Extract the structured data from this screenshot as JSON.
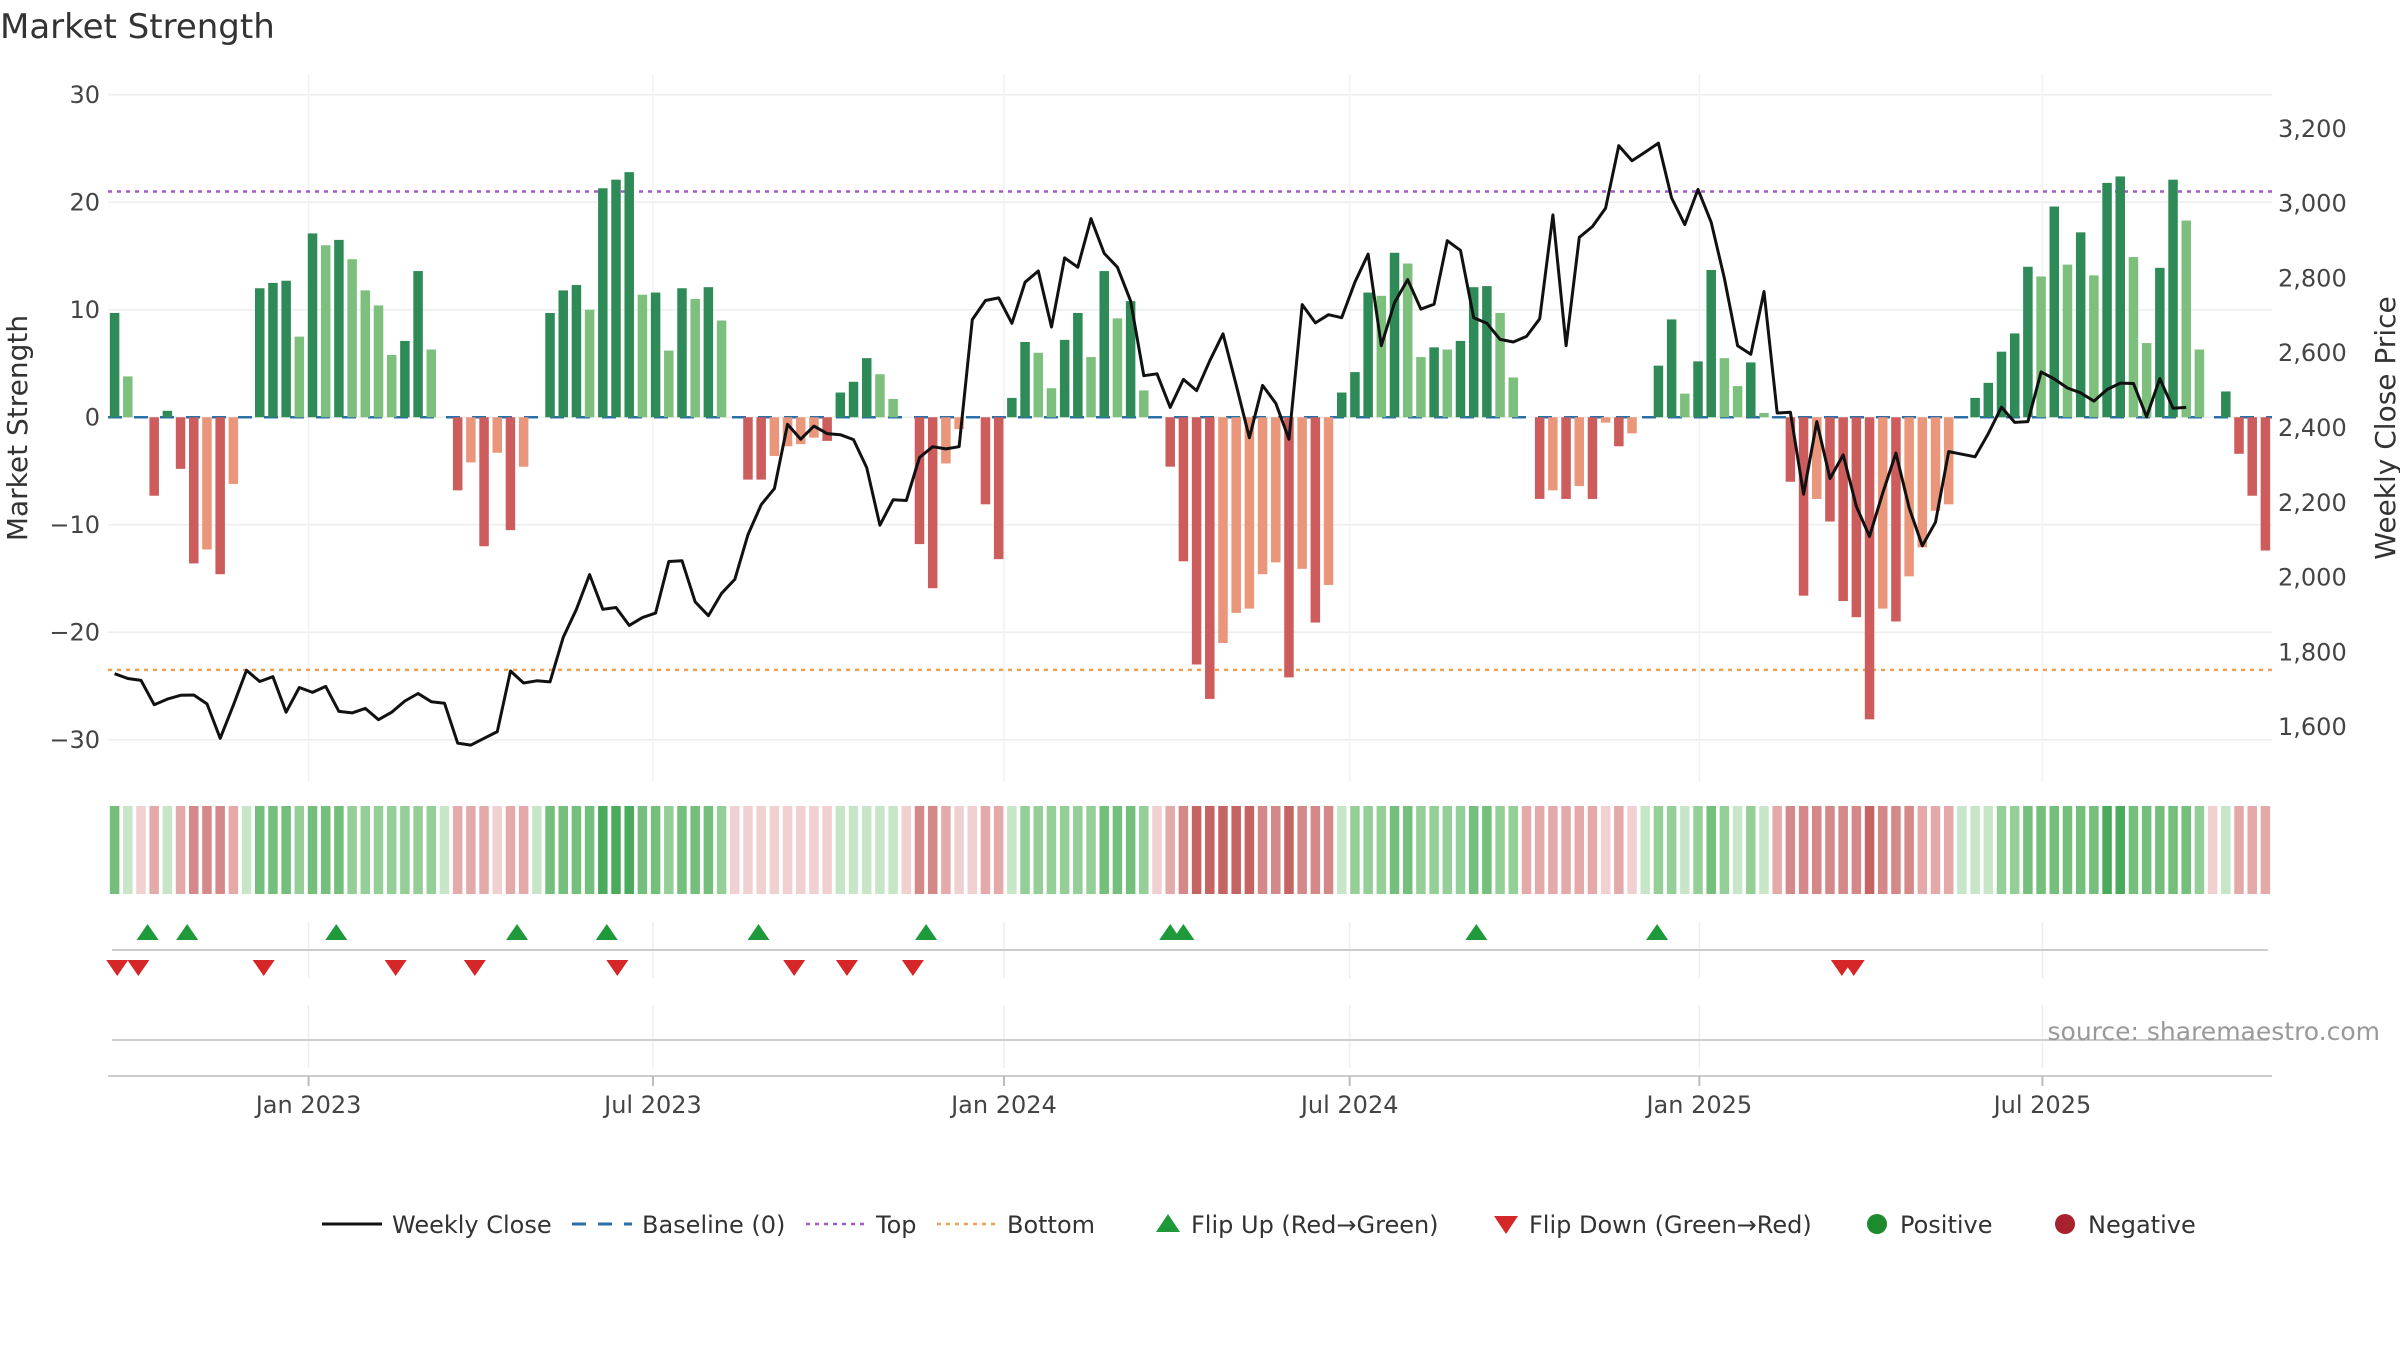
{
  "chart_data": {
    "type": "bar",
    "title": "Market Strength",
    "ylabel": "Market Strength",
    "y2label": "Weekly Close Price",
    "ylim": [
      -33,
      31
    ],
    "y2lim": [
      1480,
      3320
    ],
    "yticks": [
      30,
      20,
      10,
      0,
      -10,
      -20,
      -30
    ],
    "ytick_labels": [
      "30",
      "20",
      "10",
      "0",
      "−10",
      "−20",
      "−30"
    ],
    "y2ticks": [
      3200,
      3000,
      2800,
      2600,
      2400,
      2200,
      2000,
      1800,
      1600
    ],
    "y2tick_labels": [
      "3,200",
      "3,000",
      "2,800",
      "2,600",
      "2,400",
      "2,200",
      "2,000",
      "1,800",
      "1,600"
    ],
    "x_labels": [
      {
        "label": "Jan 2023",
        "week": 15.2
      },
      {
        "label": "Jul 2023",
        "week": 41.3
      },
      {
        "label": "Jan 2024",
        "week": 67.9
      },
      {
        "label": "Jul 2024",
        "week": 94.1
      },
      {
        "label": "Jan 2025",
        "week": 120.6
      },
      {
        "label": "Jul 2025",
        "week": 146.6
      }
    ],
    "top_line": 21,
    "bottom_line": -23.5,
    "strength": [
      9.7,
      3.8,
      0,
      -7.3,
      0.6,
      -4.8,
      -13.6,
      -12.3,
      -14.6,
      -6.2,
      0,
      12,
      12.5,
      12.7,
      7.5,
      17.1,
      16,
      16.5,
      14.7,
      11.8,
      10.4,
      5.8,
      7.1,
      13.6,
      6.3,
      0,
      -6.8,
      -4.2,
      -12,
      -3.3,
      -10.5,
      -4.6,
      0,
      9.7,
      11.8,
      12.3,
      10,
      21.3,
      22.1,
      22.8,
      11.4,
      11.6,
      6.2,
      12,
      11,
      12.1,
      9,
      0,
      -5.8,
      -5.8,
      -3.6,
      -2.7,
      -2.5,
      -1.9,
      -2.2,
      2.3,
      3.3,
      5.5,
      4,
      1.7,
      0,
      -11.8,
      -15.9,
      -4.3,
      -1.1,
      0,
      -8.1,
      -13.2,
      1.8,
      7,
      6,
      2.7,
      7.2,
      9.7,
      5.6,
      13.6,
      9.2,
      10.8,
      2.5,
      0,
      -4.6,
      -13.4,
      -23,
      -26.2,
      -21,
      -18.2,
      -17.8,
      -14.6,
      -13.5,
      -24.2,
      -14.1,
      -19.1,
      -15.6,
      2.3,
      4.2,
      11.6,
      11.3,
      15.3,
      14.3,
      5.6,
      6.5,
      6.3,
      7.1,
      12.1,
      12.2,
      9.7,
      3.7,
      0,
      -7.6,
      -6.8,
      -7.6,
      -6.4,
      -7.6,
      -0.5,
      -2.7,
      -1.5,
      0,
      4.8,
      9.1,
      2.2,
      5.2,
      13.7,
      5.5,
      2.9,
      5.1,
      0.4,
      0,
      -6,
      -16.6,
      -7.6,
      -9.7,
      -17.1,
      -18.6,
      -28.1,
      -17.8,
      -19,
      -14.8,
      -12.1,
      -8.7,
      -8.1,
      0,
      1.8,
      3.2,
      6.1,
      7.8,
      14,
      13.1,
      19.6,
      14.2,
      17.2,
      13.2,
      21.8,
      22.4,
      14.9,
      6.9,
      13.9,
      22.1,
      18.3,
      6.3,
      0,
      2.4,
      -3.4,
      -7.3,
      -12.4
    ],
    "weekly_close": [
      1743,
      1730,
      1725,
      1660,
      1675,
      1685,
      1686,
      1662,
      1570,
      1659,
      1752,
      1722,
      1735,
      1640,
      1706,
      1693,
      1709,
      1642,
      1638,
      1650,
      1620,
      1640,
      1670,
      1690,
      1668,
      1664,
      1557,
      1552,
      1570,
      1588,
      1750,
      1718,
      1724,
      1721,
      1840,
      1915,
      2008,
      1915,
      1920,
      1872,
      1893,
      1905,
      2043,
      2045,
      1935,
      1898,
      1958,
      1995,
      2115,
      2195,
      2238,
      2410,
      2370,
      2405,
      2385,
      2382,
      2369,
      2294,
      2140,
      2208,
      2206,
      2321,
      2350,
      2344,
      2350,
      2690,
      2741,
      2748,
      2680,
      2790,
      2820,
      2670,
      2855,
      2830,
      2960,
      2867,
      2830,
      2740,
      2540,
      2545,
      2455,
      2530,
      2500,
      2580,
      2652,
      2515,
      2374,
      2514,
      2466,
      2370,
      2730,
      2681,
      2703,
      2695,
      2790,
      2865,
      2620,
      2735,
      2797,
      2718,
      2731,
      2901,
      2875,
      2695,
      2680,
      2637,
      2630,
      2645,
      2692,
      2970,
      2620,
      2910,
      2939,
      2988,
      3155,
      3115,
      3138,
      3162,
      3015,
      2944,
      3038,
      2950,
      2800,
      2620,
      2597,
      2765,
      2440,
      2442,
      2223,
      2417,
      2265,
      2328,
      2190,
      2110,
      2226,
      2333,
      2187,
      2085,
      2148,
      2337,
      2330,
      2323,
      2385,
      2456,
      2415,
      2417,
      2550,
      2531,
      2507,
      2494,
      2472,
      2503,
      2520,
      2519,
      2430,
      2532,
      2453,
      2455
    ],
    "regime": [
      "G3",
      "G1",
      "R1",
      "R2",
      "G1",
      "R2",
      "R3",
      "R3",
      "R3",
      "R2",
      "G1",
      "G3",
      "G3",
      "G3",
      "G2",
      "G3",
      "G3",
      "G3",
      "G2",
      "G2",
      "G2",
      "G2",
      "G2",
      "G2",
      "G2",
      "G1",
      "R2",
      "R2",
      "R2",
      "R1",
      "R2",
      "R2",
      "G1",
      "G3",
      "G3",
      "G3",
      "G3",
      "G4",
      "G4",
      "G4",
      "G3",
      "G3",
      "G2",
      "G3",
      "G3",
      "G3",
      "G2",
      "R1",
      "R1",
      "R1",
      "R1",
      "R1",
      "R1",
      "R1",
      "R1",
      "G1",
      "G1",
      "G1",
      "G1",
      "G1",
      "R1",
      "R3",
      "R3",
      "R2",
      "R1",
      "R1",
      "R2",
      "R2",
      "G1",
      "G2",
      "G2",
      "G2",
      "G2",
      "G2",
      "G2",
      "G3",
      "G3",
      "G3",
      "G2",
      "R1",
      "R2",
      "R3",
      "R4",
      "R4",
      "R4",
      "R4",
      "R4",
      "R3",
      "R3",
      "R4",
      "R3",
      "R3",
      "R3",
      "G1",
      "G2",
      "G2",
      "G2",
      "G3",
      "G3",
      "G2",
      "G2",
      "G2",
      "G2",
      "G3",
      "G3",
      "G2",
      "G2",
      "R2",
      "R2",
      "R2",
      "R2",
      "R2",
      "R2",
      "R1",
      "R2",
      "R1",
      "G1",
      "G2",
      "G2",
      "G1",
      "G2",
      "G3",
      "G2",
      "G1",
      "G2",
      "G1",
      "R2",
      "R3",
      "R3",
      "R3",
      "R3",
      "R3",
      "R3",
      "R4",
      "R3",
      "R3",
      "R3",
      "R2",
      "R2",
      "R2",
      "G1",
      "G1",
      "G1",
      "G2",
      "G2",
      "G3",
      "G3",
      "G3",
      "G3",
      "G3",
      "G3",
      "G4",
      "G4",
      "G3",
      "G3",
      "G3",
      "G3",
      "G3",
      "G2",
      "R1",
      "G1",
      "R2",
      "R2",
      "R2"
    ],
    "flip_up_weeks": [
      3,
      6,
      17.3,
      31,
      37.8,
      49.3,
      62,
      80.5,
      81.5,
      103.7,
      117.4
    ],
    "flip_down_weeks": [
      0.7,
      2.3,
      11.8,
      21.8,
      27.8,
      38.6,
      52,
      56,
      61,
      131.4,
      132.3
    ],
    "source_text": "source: sharemaestro.com",
    "legend": [
      {
        "label": "Weekly Close",
        "symbol": "line",
        "color": "#111111"
      },
      {
        "label": "Baseline (0)",
        "symbol": "dash",
        "color": "#2a6fa8"
      },
      {
        "label": "Top",
        "symbol": "dot",
        "color": "#a35bc7"
      },
      {
        "label": "Bottom",
        "symbol": "dot",
        "color": "#f0a050"
      },
      {
        "label": "Flip Up (Red→Green)",
        "symbol": "tri-up",
        "color": "#1f9a3a"
      },
      {
        "label": "Flip Down (Green→Red)",
        "symbol": "tri-down",
        "color": "#d62728"
      },
      {
        "label": "Positive",
        "symbol": "circle",
        "color": "#1e8a2e"
      },
      {
        "label": "Negative",
        "symbol": "circle",
        "color": "#a8212d"
      }
    ],
    "colors": {
      "pos_strong": "#2e8b57",
      "pos_weak": "#7dc07d",
      "neg_strong": "#cd5c5c",
      "neg_weak": "#e9967a",
      "G1": "#c7e6c7",
      "G2": "#94cf98",
      "G3": "#74bf7c",
      "G4": "#4aab5c",
      "R1": "#f0d0d0",
      "R2": "#e4aaaa",
      "R3": "#d48888",
      "R4": "#c66363"
    }
  }
}
